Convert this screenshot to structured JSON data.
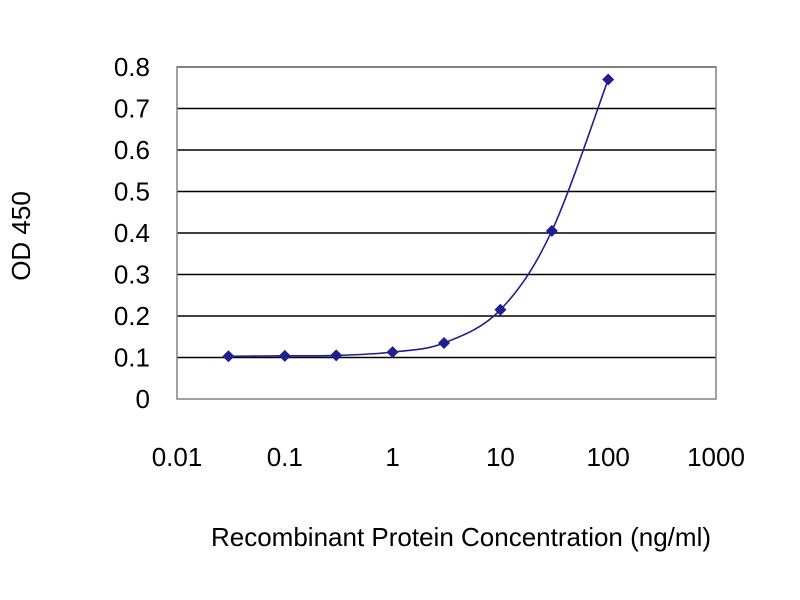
{
  "chart_data": {
    "type": "scatter",
    "title": "",
    "xlabel": "Recombinant Protein Concentration (ng/ml)",
    "ylabel": "OD 450",
    "x_scale": "log",
    "xlim": [
      0.01,
      1000
    ],
    "ylim": [
      0,
      0.8
    ],
    "x_ticks": [
      0.01,
      0.1,
      1,
      10,
      100,
      1000
    ],
    "x_tick_labels": [
      "0.01",
      "0.1",
      "1",
      "10",
      "100",
      "1000"
    ],
    "y_ticks": [
      0,
      0.1,
      0.2,
      0.3,
      0.4,
      0.5,
      0.6,
      0.7,
      0.8
    ],
    "y_tick_labels": [
      "0",
      "0.1",
      "0.2",
      "0.3",
      "0.4",
      "0.5",
      "0.6",
      "0.7",
      "0.8"
    ],
    "grid": "horizontal",
    "legend": "none",
    "fit_curve": "smooth",
    "colors": {
      "series": "#1f1f8f",
      "grid": "#000000",
      "plot_border": "#808080",
      "background": "#ffffff"
    },
    "series": [
      {
        "x": [
          0.03,
          0.1,
          0.3,
          1,
          3,
          10,
          30,
          100
        ],
        "y": [
          0.103,
          0.104,
          0.105,
          0.113,
          0.135,
          0.215,
          0.405,
          0.77
        ]
      }
    ]
  }
}
